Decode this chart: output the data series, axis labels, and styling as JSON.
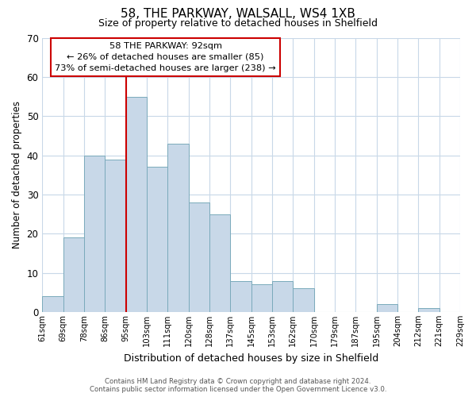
{
  "title": "58, THE PARKWAY, WALSALL, WS4 1XB",
  "subtitle": "Size of property relative to detached houses in Shelfield",
  "xlabel": "Distribution of detached houses by size in Shelfield",
  "ylabel": "Number of detached properties",
  "bin_labels": [
    "61sqm",
    "69sqm",
    "78sqm",
    "86sqm",
    "95sqm",
    "103sqm",
    "111sqm",
    "120sqm",
    "128sqm",
    "137sqm",
    "145sqm",
    "153sqm",
    "162sqm",
    "170sqm",
    "179sqm",
    "187sqm",
    "195sqm",
    "204sqm",
    "212sqm",
    "221sqm",
    "229sqm"
  ],
  "bar_heights": [
    4,
    19,
    40,
    39,
    55,
    37,
    43,
    28,
    25,
    8,
    7,
    8,
    6,
    0,
    0,
    0,
    2,
    0,
    1,
    0
  ],
  "bar_color": "#c8d8e8",
  "bar_edge_color": "#7aaabb",
  "vline_color": "#cc0000",
  "vline_bar_index": 4,
  "ylim": [
    0,
    70
  ],
  "yticks": [
    0,
    10,
    20,
    30,
    40,
    50,
    60,
    70
  ],
  "annotation_title": "58 THE PARKWAY: 92sqm",
  "annotation_line2": "← 26% of detached houses are smaller (85)",
  "annotation_line3": "73% of semi-detached houses are larger (238) →",
  "annotation_box_color": "#cc0000",
  "footer_line1": "Contains HM Land Registry data © Crown copyright and database right 2024.",
  "footer_line2": "Contains public sector information licensed under the Open Government Licence v3.0.",
  "background_color": "#ffffff",
  "grid_color": "#c8d8e8",
  "n_bars": 20,
  "n_labels": 21
}
